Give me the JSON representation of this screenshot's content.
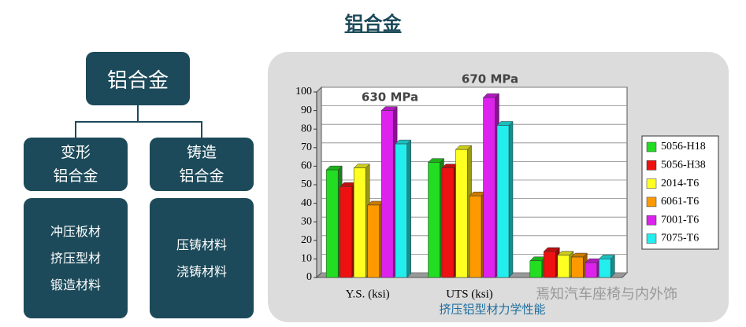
{
  "title": "铝合金",
  "diagram": {
    "root": "铝合金",
    "branches": [
      {
        "label_lines": [
          "变形",
          "铝合金"
        ],
        "items": [
          "冲压板材",
          "挤压型材",
          "锻造材料"
        ]
      },
      {
        "label_lines": [
          "铸造",
          "铝合金"
        ],
        "items": [
          "压铸材料",
          "浇铸材料"
        ]
      }
    ]
  },
  "watermark": "焉知汽车座椅与内外饰",
  "chart_data": {
    "type": "bar3d",
    "subtitle": "挤压铝型材力学性能",
    "annotations": [
      "630 MPa",
      "670 MPa"
    ],
    "categories": [
      "Y.S. (ksi)",
      "UTS (ksi)",
      null
    ],
    "series": [
      {
        "name": "5056-H18",
        "color": "#22dd22",
        "values": [
          58,
          62,
          9
        ]
      },
      {
        "name": "5056-H38",
        "color": "#ee1111",
        "values": [
          49,
          59,
          14
        ]
      },
      {
        "name": "2014-T6",
        "color": "#ffff22",
        "values": [
          59,
          69,
          12
        ]
      },
      {
        "name": "6061-T6",
        "color": "#ff9900",
        "values": [
          39,
          44,
          11
        ]
      },
      {
        "name": "7001-T6",
        "color": "#dd22ee",
        "values": [
          90,
          97,
          8
        ]
      },
      {
        "name": "7075-T6",
        "color": "#22eeee",
        "values": [
          72,
          82,
          10
        ]
      }
    ],
    "ylim": [
      0,
      100
    ],
    "yticks": [
      0,
      10,
      20,
      30,
      40,
      50,
      60,
      70,
      80,
      90,
      100
    ],
    "grid": true,
    "legend": "right"
  }
}
